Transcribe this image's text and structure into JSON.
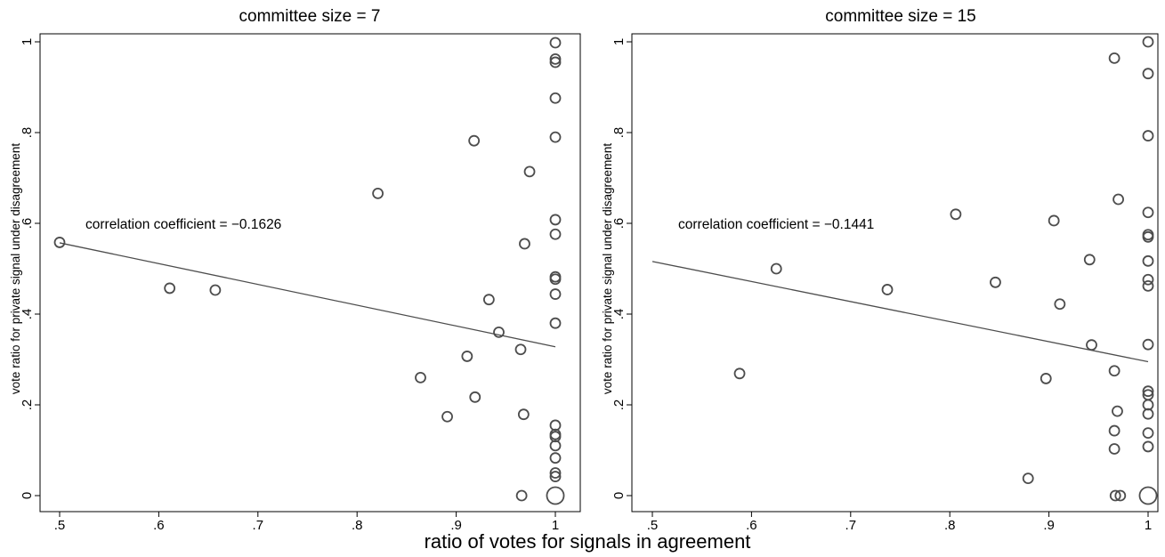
{
  "figure": {
    "xlabel": "ratio of votes for signals in agreement"
  },
  "chart_data": [
    {
      "type": "scatter",
      "title": "committee size = 7",
      "xlabel": "ratio of votes for signals in agreement",
      "ylabel": "vote ratio for private signal under disagreement",
      "xlim": [
        0.5,
        1.0
      ],
      "ylim": [
        0,
        1
      ],
      "xticks": [
        0.5,
        0.6,
        0.7,
        0.8,
        0.9,
        1.0
      ],
      "xtick_labels": [
        ".5",
        ".6",
        ".7",
        ".8",
        ".9",
        "1"
      ],
      "yticks": [
        0,
        0.2,
        0.4,
        0.6,
        0.8,
        1.0
      ],
      "ytick_labels": [
        "0",
        ".2",
        ".4",
        ".6",
        ".8",
        "1"
      ],
      "grid": false,
      "legend": "none",
      "annotation": "correlation coefficient = −0.1626",
      "fit_line": {
        "x": [
          0.5,
          1.0
        ],
        "y": [
          0.557,
          0.328
        ]
      },
      "points": [
        {
          "x": 0.5,
          "y": 0.558
        },
        {
          "x": 0.611,
          "y": 0.457
        },
        {
          "x": 0.657,
          "y": 0.453
        },
        {
          "x": 0.821,
          "y": 0.666
        },
        {
          "x": 0.864,
          "y": 0.26
        },
        {
          "x": 0.891,
          "y": 0.174
        },
        {
          "x": 0.911,
          "y": 0.307
        },
        {
          "x": 0.918,
          "y": 0.782
        },
        {
          "x": 0.919,
          "y": 0.217
        },
        {
          "x": 0.933,
          "y": 0.432
        },
        {
          "x": 0.943,
          "y": 0.36
        },
        {
          "x": 0.965,
          "y": 0.322
        },
        {
          "x": 0.966,
          "y": 0.0
        },
        {
          "x": 0.968,
          "y": 0.179
        },
        {
          "x": 0.969,
          "y": 0.555
        },
        {
          "x": 0.974,
          "y": 0.714
        },
        {
          "x": 1.0,
          "y": 0.998
        },
        {
          "x": 1.0,
          "y": 0.962
        },
        {
          "x": 1.0,
          "y": 0.955
        },
        {
          "x": 1.0,
          "y": 0.876
        },
        {
          "x": 1.0,
          "y": 0.79
        },
        {
          "x": 1.0,
          "y": 0.608
        },
        {
          "x": 1.0,
          "y": 0.576
        },
        {
          "x": 1.0,
          "y": 0.482
        },
        {
          "x": 1.0,
          "y": 0.477
        },
        {
          "x": 1.0,
          "y": 0.444
        },
        {
          "x": 1.0,
          "y": 0.38
        },
        {
          "x": 1.0,
          "y": 0.155
        },
        {
          "x": 1.0,
          "y": 0.135
        },
        {
          "x": 1.0,
          "y": 0.13
        },
        {
          "x": 1.0,
          "y": 0.11
        },
        {
          "x": 1.0,
          "y": 0.083
        },
        {
          "x": 1.0,
          "y": 0.05
        },
        {
          "x": 1.0,
          "y": 0.042
        },
        {
          "x": 1.0,
          "y": 0.0,
          "weight": 3
        }
      ]
    },
    {
      "type": "scatter",
      "title": "committee size = 15",
      "xlabel": "ratio of votes for signals in agreement",
      "ylabel": "vote ratio for private signal under disagreement",
      "xlim": [
        0.5,
        1.0
      ],
      "ylim": [
        0,
        1
      ],
      "xticks": [
        0.5,
        0.6,
        0.7,
        0.8,
        0.9,
        1.0
      ],
      "xtick_labels": [
        ".5",
        ".6",
        ".7",
        ".8",
        ".9",
        "1"
      ],
      "yticks": [
        0,
        0.2,
        0.4,
        0.6,
        0.8,
        1.0
      ],
      "ytick_labels": [
        "0",
        ".2",
        ".4",
        ".6",
        ".8",
        "1"
      ],
      "grid": false,
      "legend": "none",
      "annotation": "correlation coefficient = −0.1441",
      "fit_line": {
        "x": [
          0.5,
          1.0
        ],
        "y": [
          0.516,
          0.295
        ]
      },
      "points": [
        {
          "x": 0.588,
          "y": 0.269
        },
        {
          "x": 0.625,
          "y": 0.5
        },
        {
          "x": 0.737,
          "y": 0.454
        },
        {
          "x": 0.806,
          "y": 0.62
        },
        {
          "x": 0.846,
          "y": 0.47
        },
        {
          "x": 0.879,
          "y": 0.038
        },
        {
          "x": 0.897,
          "y": 0.258
        },
        {
          "x": 0.905,
          "y": 0.606
        },
        {
          "x": 0.911,
          "y": 0.422
        },
        {
          "x": 0.941,
          "y": 0.52
        },
        {
          "x": 0.943,
          "y": 0.332
        },
        {
          "x": 0.966,
          "y": 0.964
        },
        {
          "x": 0.966,
          "y": 0.275
        },
        {
          "x": 0.966,
          "y": 0.143
        },
        {
          "x": 0.966,
          "y": 0.103
        },
        {
          "x": 0.967,
          "y": 0.0
        },
        {
          "x": 0.969,
          "y": 0.186
        },
        {
          "x": 0.97,
          "y": 0.653
        },
        {
          "x": 0.972,
          "y": 0.0
        },
        {
          "x": 1.0,
          "y": 1.0
        },
        {
          "x": 1.0,
          "y": 0.93
        },
        {
          "x": 1.0,
          "y": 0.793
        },
        {
          "x": 1.0,
          "y": 0.624
        },
        {
          "x": 1.0,
          "y": 0.575
        },
        {
          "x": 1.0,
          "y": 0.57
        },
        {
          "x": 1.0,
          "y": 0.517
        },
        {
          "x": 1.0,
          "y": 0.476
        },
        {
          "x": 1.0,
          "y": 0.462
        },
        {
          "x": 1.0,
          "y": 0.333
        },
        {
          "x": 1.0,
          "y": 0.23
        },
        {
          "x": 1.0,
          "y": 0.222
        },
        {
          "x": 1.0,
          "y": 0.2
        },
        {
          "x": 1.0,
          "y": 0.18
        },
        {
          "x": 1.0,
          "y": 0.138
        },
        {
          "x": 1.0,
          "y": 0.108
        },
        {
          "x": 1.0,
          "y": 0.0,
          "weight": 3
        }
      ]
    }
  ]
}
